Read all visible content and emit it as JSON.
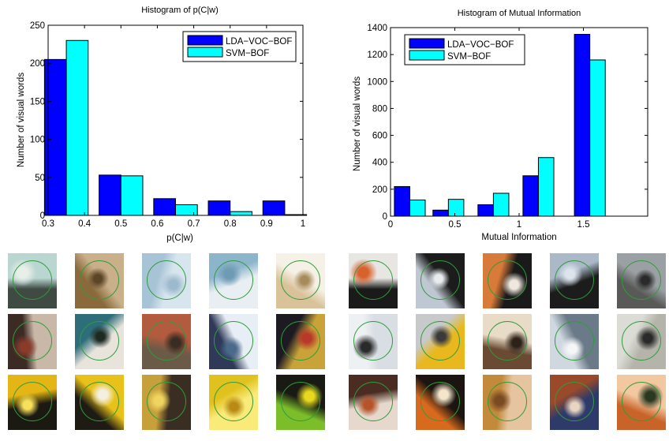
{
  "chart_data": [
    {
      "type": "bar",
      "title": "Histogram of p(C|w)",
      "xlabel": "p(C|w)",
      "ylabel": "Number of visual words",
      "xlim": [
        0.3,
        1
      ],
      "ylim": [
        0,
        250
      ],
      "xticks": [
        "0.3",
        "0.4",
        "0.5",
        "0.6",
        "0.7",
        "0.8",
        "0.9",
        "1"
      ],
      "yticks": [
        "0",
        "50",
        "100",
        "150",
        "200",
        "250"
      ],
      "bin_centers": [
        0.35,
        0.5,
        0.65,
        0.8,
        0.95
      ],
      "legend_position": "top-right",
      "series": [
        {
          "name": "LDA−VOC−BOF",
          "color": "#0000ff",
          "values": [
            205,
            53,
            22,
            19,
            19
          ]
        },
        {
          "name": "SVM−BOF",
          "color": "#00ffff",
          "values": [
            230,
            52,
            14,
            5,
            1
          ]
        }
      ]
    },
    {
      "type": "bar",
      "title": "Histogram of Mutual Information",
      "xlabel": "Mutual Information",
      "ylabel": "Number of visual words",
      "xlim": [
        0,
        2
      ],
      "ylim": [
        0,
        1400
      ],
      "xticks": [
        "0",
        "0.5",
        "1",
        "1.5"
      ],
      "yticks": [
        "0",
        "200",
        "400",
        "600",
        "800",
        "1000",
        "1200",
        "1400"
      ],
      "bin_centers": [
        0.15,
        0.45,
        0.8,
        1.15,
        1.55
      ],
      "legend_position": "top-left",
      "series": [
        {
          "name": "LDA−VOC−BOF",
          "color": "#0000ff",
          "values": [
            220,
            45,
            85,
            300,
            1350
          ]
        },
        {
          "name": "SVM−BOF",
          "color": "#00ffff",
          "values": [
            120,
            125,
            170,
            435,
            1160
          ]
        }
      ]
    }
  ],
  "patches_left": [
    [
      "#3e4a42",
      "#b9d6d0",
      "#e8efe9"
    ],
    [
      "#8a6a3c",
      "#c9b08b",
      "#5c4526"
    ],
    [
      "#a7c3d6",
      "#d7e5ee",
      "#9db9cd"
    ],
    [
      "#8cb5cc",
      "#e8eef2",
      "#6f9ab4"
    ],
    [
      "#d9c29a",
      "#f6f1e6",
      "#a88b5c"
    ],
    [
      "#3c2a24",
      "#c9b7a8",
      "#8a3b2a"
    ],
    [
      "#2e6d7a",
      "#e8e4dc",
      "#1d2a22"
    ],
    [
      "#6c5a48",
      "#b35b3f",
      "#3a2c22"
    ],
    [
      "#2e3a58",
      "#e8eef5",
      "#4a6a8c"
    ],
    [
      "#1d1a22",
      "#c9a23a",
      "#b8392a"
    ],
    [
      "#e3b515",
      "#1b1a12",
      "#f7e05a"
    ],
    [
      "#1e1a14",
      "#e8c21a",
      "#f4efe0"
    ],
    [
      "#c6a03a",
      "#3a2e22",
      "#f0d460"
    ],
    [
      "#e0c21e",
      "#f9ea7a",
      "#b98a16"
    ],
    [
      "#7cbd2a",
      "#1a1a14",
      "#e6d91e"
    ]
  ],
  "patches_right": [
    [
      "#1a1a1a",
      "#e8e6e2",
      "#d8622c"
    ],
    [
      "#bfc8d2",
      "#1c1c1c",
      "#e9ecef"
    ],
    [
      "#d87a3a",
      "#1a1a1a",
      "#efe8de"
    ],
    [
      "#aab8c8",
      "#1c1c1c",
      "#dce4ec"
    ],
    [
      "#595a58",
      "#9ba0a4",
      "#2a2a2a"
    ],
    [
      "#eef1f4",
      "#d8dee4",
      "#2a2a2a"
    ],
    [
      "#c7c9cb",
      "#e8b81e",
      "#3a3a3a"
    ],
    [
      "#6a4a32",
      "#e8dcc8",
      "#2e2218"
    ],
    [
      "#cfd8de",
      "#6a7a88",
      "#f4f6f8"
    ],
    [
      "#dcdcd6",
      "#b4b4aa",
      "#2a2a2a"
    ],
    [
      "#4a2c22",
      "#e6d8cc",
      "#b5532a"
    ],
    [
      "#d86a1e",
      "#1c1410",
      "#f4e6cc"
    ],
    [
      "#c28a3a",
      "#e6c4a0",
      "#7a4a22"
    ],
    [
      "#9a4a2a",
      "#2e3a6a",
      "#e8d6c0"
    ],
    [
      "#c8642a",
      "#f2c8a0",
      "#2a3a22"
    ]
  ]
}
